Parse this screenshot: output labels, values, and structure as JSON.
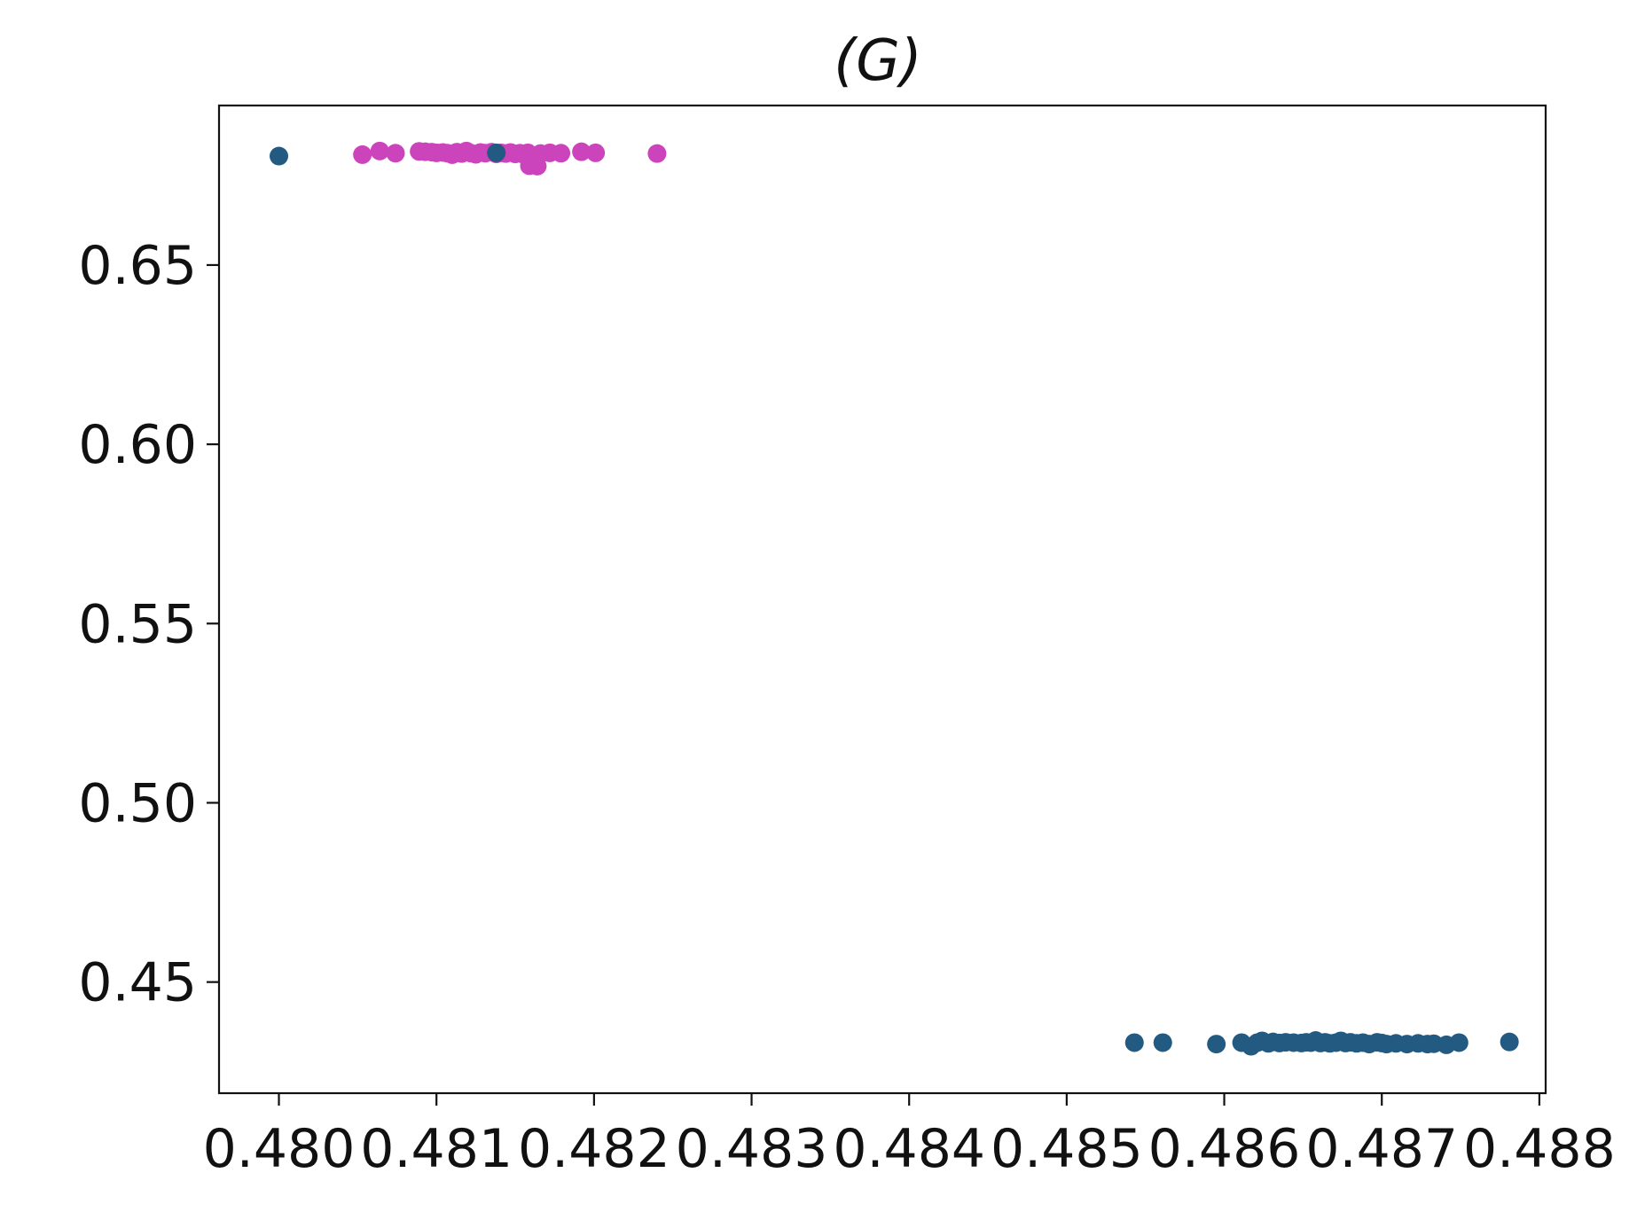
{
  "chart_data": {
    "type": "scatter",
    "title": "(G)",
    "xlabel": "",
    "ylabel": "",
    "xlim": [
      0.47962,
      0.48804
    ],
    "ylim": [
      0.419,
      0.6945
    ],
    "xticks": [
      0.48,
      0.481,
      0.482,
      0.483,
      0.484,
      0.485,
      0.486,
      0.487,
      0.488
    ],
    "xtick_labels": [
      "0.480",
      "0.481",
      "0.482",
      "0.483",
      "0.484",
      "0.485",
      "0.486",
      "0.487",
      "0.488"
    ],
    "yticks": [
      0.45,
      0.5,
      0.55,
      0.6,
      0.65
    ],
    "ytick_labels": [
      "0.45",
      "0.50",
      "0.55",
      "0.60",
      "0.65"
    ],
    "grid": false,
    "legend": "none",
    "series": [
      {
        "color": "#cc44bb",
        "points": [
          [
            0.48053,
            0.6808
          ],
          [
            0.48064,
            0.6818
          ],
          [
            0.48074,
            0.6812
          ],
          [
            0.48089,
            0.6817
          ],
          [
            0.48093,
            0.6816
          ],
          [
            0.48097,
            0.6815
          ],
          [
            0.481,
            0.6813
          ],
          [
            0.48104,
            0.6814
          ],
          [
            0.48107,
            0.6812
          ],
          [
            0.4811,
            0.6808
          ],
          [
            0.48113,
            0.6815
          ],
          [
            0.48116,
            0.6811
          ],
          [
            0.48119,
            0.6818
          ],
          [
            0.48122,
            0.6812
          ],
          [
            0.48125,
            0.6809
          ],
          [
            0.48128,
            0.6814
          ],
          [
            0.48131,
            0.6812
          ],
          [
            0.48135,
            0.6815
          ],
          [
            0.48138,
            0.681
          ],
          [
            0.48141,
            0.6813
          ],
          [
            0.48144,
            0.6811
          ],
          [
            0.48147,
            0.6814
          ],
          [
            0.4815,
            0.681
          ],
          [
            0.48153,
            0.6812
          ],
          [
            0.48156,
            0.6807
          ],
          [
            0.48158,
            0.6813
          ],
          [
            0.48159,
            0.6777
          ],
          [
            0.48164,
            0.6776
          ],
          [
            0.48166,
            0.6811
          ],
          [
            0.48172,
            0.6813
          ],
          [
            0.48179,
            0.6812
          ],
          [
            0.48192,
            0.6816
          ],
          [
            0.48201,
            0.6813
          ],
          [
            0.4824,
            0.6811
          ]
        ]
      },
      {
        "color": "#235a82",
        "points": [
          [
            0.48,
            0.6804
          ],
          [
            0.48138,
            0.6813
          ],
          [
            0.48543,
            0.4331
          ],
          [
            0.48561,
            0.4331
          ],
          [
            0.48595,
            0.4327
          ],
          [
            0.48611,
            0.4331
          ],
          [
            0.48617,
            0.4321
          ],
          [
            0.48621,
            0.4331
          ],
          [
            0.48624,
            0.4336
          ],
          [
            0.48628,
            0.4329
          ],
          [
            0.48631,
            0.4333
          ],
          [
            0.48635,
            0.433
          ],
          [
            0.48639,
            0.4332
          ],
          [
            0.48644,
            0.4331
          ],
          [
            0.48649,
            0.433
          ],
          [
            0.48652,
            0.4332
          ],
          [
            0.48655,
            0.4331
          ],
          [
            0.48658,
            0.4337
          ],
          [
            0.48661,
            0.433
          ],
          [
            0.48664,
            0.4332
          ],
          [
            0.48667,
            0.4329
          ],
          [
            0.48671,
            0.4331
          ],
          [
            0.48674,
            0.4336
          ],
          [
            0.48677,
            0.433
          ],
          [
            0.4868,
            0.4332
          ],
          [
            0.48684,
            0.4329
          ],
          [
            0.48688,
            0.4331
          ],
          [
            0.48692,
            0.4327
          ],
          [
            0.48697,
            0.4332
          ],
          [
            0.487,
            0.433
          ],
          [
            0.48703,
            0.4327
          ],
          [
            0.48709,
            0.4329
          ],
          [
            0.48716,
            0.4327
          ],
          [
            0.48723,
            0.4329
          ],
          [
            0.48729,
            0.4327
          ],
          [
            0.48733,
            0.4328
          ],
          [
            0.48741,
            0.4325
          ],
          [
            0.48749,
            0.4331
          ],
          [
            0.48781,
            0.4333
          ]
        ]
      }
    ]
  }
}
